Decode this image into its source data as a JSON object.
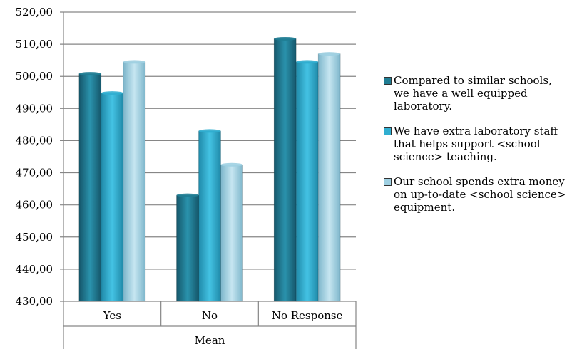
{
  "chart_data": {
    "type": "bar",
    "categories": [
      "Yes",
      "No",
      "No Response"
    ],
    "group_label": "Mean",
    "series": [
      {
        "name": "Compared to similar schools, we have a well equipped laboratory.",
        "values": [
          500.8,
          463.0,
          511.7
        ],
        "color": "#1f7d93"
      },
      {
        "name": "We have extra laboratory staff that helps support <school science> teaching.",
        "values": [
          494.8,
          483.0,
          504.5
        ],
        "color": "#30aed0"
      },
      {
        "name": "Our school spends extra money on up-to-date <school science> equipment.",
        "values": [
          504.5,
          472.5,
          507.0
        ],
        "color": "#9fd0e2"
      }
    ],
    "yticks": [
      "430,00",
      "440,00",
      "450,00",
      "460,00",
      "470,00",
      "480,00",
      "490,00",
      "500,00",
      "510,00",
      "520,00"
    ],
    "ylim": [
      430,
      520
    ],
    "grid": true,
    "legend": "right"
  }
}
